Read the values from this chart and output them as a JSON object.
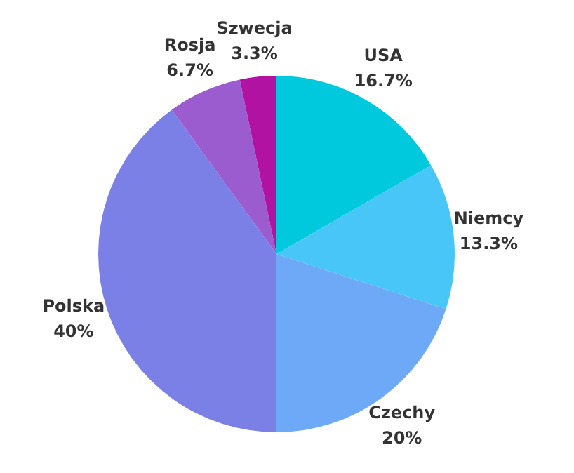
{
  "chart_data": {
    "type": "pie",
    "categories": [
      "USA",
      "Niemcy",
      "Czechy",
      "Polska",
      "Rosja",
      "Szwecja"
    ],
    "values": [
      16.7,
      13.3,
      20,
      40,
      6.7,
      3.3
    ],
    "value_labels": [
      "16.7%",
      "13.3%",
      "20%",
      "40%",
      "6.7%",
      "3.3%"
    ],
    "colors": [
      "#00c9dd",
      "#48c6f7",
      "#6ea9f7",
      "#7a80e6",
      "#9a5ccf",
      "#b112a2"
    ],
    "legend": false
  }
}
